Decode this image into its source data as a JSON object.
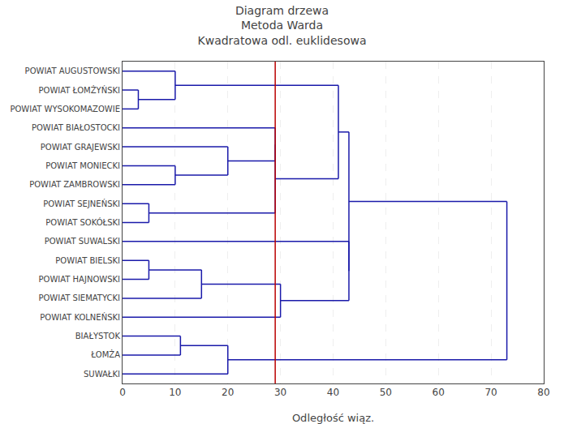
{
  "chart_data": {
    "type": "dendrogram",
    "title": "Diagram drzewa\nMetoda Warda\nKwadratowa odl. euklidesowa",
    "x_label": "Odległość wiąz.",
    "categories": [
      "POWIAT AUGUSTOWSKI",
      "POWIAT ŁOMŻYŃSKI",
      "POWIAT WYSOKOMAZOWIE",
      "POWIAT BIAŁOSTOCKI",
      "POWIAT GRAJEWSKI",
      "POWIAT MONIECKI",
      "POWIAT ZAMBROWSKI",
      "POWIAT SEJNEŃSKI",
      "POWIAT SOKÓŁSKI",
      "POWIAT SUWALSKI",
      "POWIAT BIELSKI",
      "POWIAT HAJNOWSKI",
      "POWIAT SIEMATYCKI",
      "POWIAT KOLNEŃSKI",
      "BIAŁYSTOK",
      "ŁOMŻA",
      "SUWAŁKI"
    ],
    "merges": [
      {
        "left": 1,
        "right": 2,
        "distance": 3.0
      },
      {
        "left": 0,
        "right": 17,
        "distance": 10.0
      },
      {
        "left": 5,
        "right": 6,
        "distance": 10.0
      },
      {
        "left": 7,
        "right": 8,
        "distance": 5.0
      },
      {
        "left": 4,
        "right": 19,
        "distance": 20.0
      },
      {
        "left": 3,
        "right": 21,
        "distance": 29.0
      },
      {
        "left": 22,
        "right": 20,
        "distance": 29.0
      },
      {
        "left": 18,
        "right": 23,
        "distance": 41.0
      },
      {
        "left": 10,
        "right": 11,
        "distance": 5.0
      },
      {
        "left": 25,
        "right": 12,
        "distance": 15.0
      },
      {
        "left": 26,
        "right": 13,
        "distance": 30.0
      },
      {
        "left": 9,
        "right": 27,
        "distance": 43.0
      },
      {
        "left": 14,
        "right": 15,
        "distance": 11.0
      },
      {
        "left": 29,
        "right": 16,
        "distance": 20.0
      },
      {
        "left": 24,
        "right": 28,
        "distance": 43.0
      },
      {
        "left": 31,
        "right": 30,
        "distance": 73.0
      }
    ],
    "color": "#1a1aaa",
    "cut_line": {
      "x": 29.0,
      "color": "#BB0000"
    },
    "xlim": [
      0,
      80
    ],
    "xticks": [
      0,
      10,
      20,
      30,
      40,
      50,
      60,
      70,
      80
    ],
    "grid": true
  }
}
